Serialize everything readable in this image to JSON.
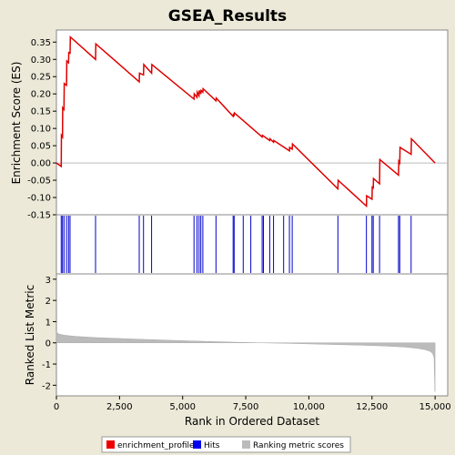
{
  "chart_data": {
    "type": "line",
    "title": "GSEA_Results",
    "xlabel": "Rank in Ordered Dataset",
    "xlim": [
      0,
      15500
    ],
    "xticks": [
      0,
      2500,
      5000,
      7500,
      10000,
      12500,
      15000
    ],
    "xtick_labels": [
      "0",
      "2,500",
      "5,000",
      "7,500",
      "10,000",
      "12,500",
      "15,000"
    ],
    "panels": {
      "enrichment": {
        "ylabel": "Enrichment Score (ES)",
        "ylim": [
          -0.15,
          0.385
        ],
        "yticks": [
          -0.15,
          -0.1,
          -0.05,
          0.0,
          0.05,
          0.1,
          0.15,
          0.2,
          0.25,
          0.3,
          0.35
        ],
        "ytick_labels": [
          "-0.15",
          "-0.10",
          "-0.05",
          "0.00",
          "0.05",
          "0.10",
          "0.15",
          "0.20",
          "0.25",
          "0.30",
          "0.35"
        ],
        "series": [
          {
            "name": "enrichment_profile",
            "color": "#dd0000",
            "x": [
              0,
              190,
              200,
              240,
              250,
              300,
              310,
              400,
              410,
              480,
              490,
              540,
              550,
              1550,
              1560,
              3280,
              3290,
              3450,
              3460,
              3770,
              3780,
              5450,
              5460,
              5570,
              5580,
              5650,
              5660,
              5720,
              5730,
              5800,
              5810,
              6320,
              6330,
              7000,
              7010,
              7040,
              7050,
              8150,
              8160,
              8450,
              8460,
              8600,
              8610,
              9230,
              9240,
              9340,
              9350,
              11150,
              11160,
              12280,
              12290,
              12500,
              12510,
              12550,
              12560,
              12800,
              12810,
              13550,
              13560,
              13600,
              13610,
              14050,
              14060,
              15000
            ],
            "y": [
              0.0,
              -0.01,
              0.08,
              0.075,
              0.16,
              0.155,
              0.23,
              0.225,
              0.295,
              0.29,
              0.32,
              0.318,
              0.365,
              0.3,
              0.345,
              0.235,
              0.26,
              0.255,
              0.285,
              0.26,
              0.285,
              0.185,
              0.2,
              0.19,
              0.205,
              0.195,
              0.21,
              0.2,
              0.21,
              0.205,
              0.215,
              0.18,
              0.188,
              0.135,
              0.14,
              0.138,
              0.145,
              0.075,
              0.08,
              0.065,
              0.07,
              0.06,
              0.065,
              0.035,
              0.045,
              0.04,
              0.055,
              -0.075,
              -0.05,
              -0.125,
              -0.095,
              -0.105,
              -0.07,
              -0.072,
              -0.045,
              -0.06,
              0.01,
              -0.035,
              0.005,
              0.0,
              0.045,
              0.025,
              0.07,
              0.0
            ]
          }
        ]
      },
      "hits": {
        "name": "Hits",
        "color": "#0000cc",
        "positions": [
          190,
          240,
          300,
          400,
          480,
          540,
          1550,
          3280,
          3450,
          3770,
          5450,
          5570,
          5650,
          5720,
          5800,
          6320,
          7000,
          7040,
          7400,
          7700,
          8150,
          8200,
          8450,
          8600,
          9000,
          9230,
          9340,
          11150,
          12280,
          12500,
          12550,
          12800,
          13550,
          13600,
          14050
        ]
      },
      "ranking": {
        "name": "Ranking metric scores",
        "color": "#bbbbbb",
        "ylabel": "Ranked List Metric",
        "ylim": [
          -2.5,
          3.25
        ],
        "yticks": [
          -2,
          -1,
          0,
          1,
          2,
          3
        ],
        "ytick_labels": [
          "-2",
          "-1",
          "0",
          "1",
          "2",
          "3"
        ],
        "x": [
          0,
          30,
          100,
          300,
          700,
          1500,
          3000,
          5000,
          7000,
          8000,
          9000,
          10000,
          11000,
          12000,
          13000,
          13800,
          14300,
          14600,
          14800,
          14900,
          14960,
          14990,
          15000
        ],
        "values": [
          0.55,
          0.48,
          0.42,
          0.36,
          0.31,
          0.25,
          0.18,
          0.1,
          0.03,
          0.0,
          -0.02,
          -0.05,
          -0.08,
          -0.11,
          -0.15,
          -0.2,
          -0.26,
          -0.32,
          -0.4,
          -0.5,
          -0.7,
          -2.3,
          -2.3
        ]
      }
    },
    "legend": {
      "placement": "bottom",
      "entries": [
        {
          "label": "enrichment_profile",
          "color": "#ee0000"
        },
        {
          "label": "Hits",
          "color": "#0000ee"
        },
        {
          "label": "Ranking metric scores",
          "color": "#bbbbbb"
        }
      ]
    },
    "colors": {
      "background": "#ece9d8",
      "plot_background": "#ffffff",
      "border": "#888888"
    }
  }
}
